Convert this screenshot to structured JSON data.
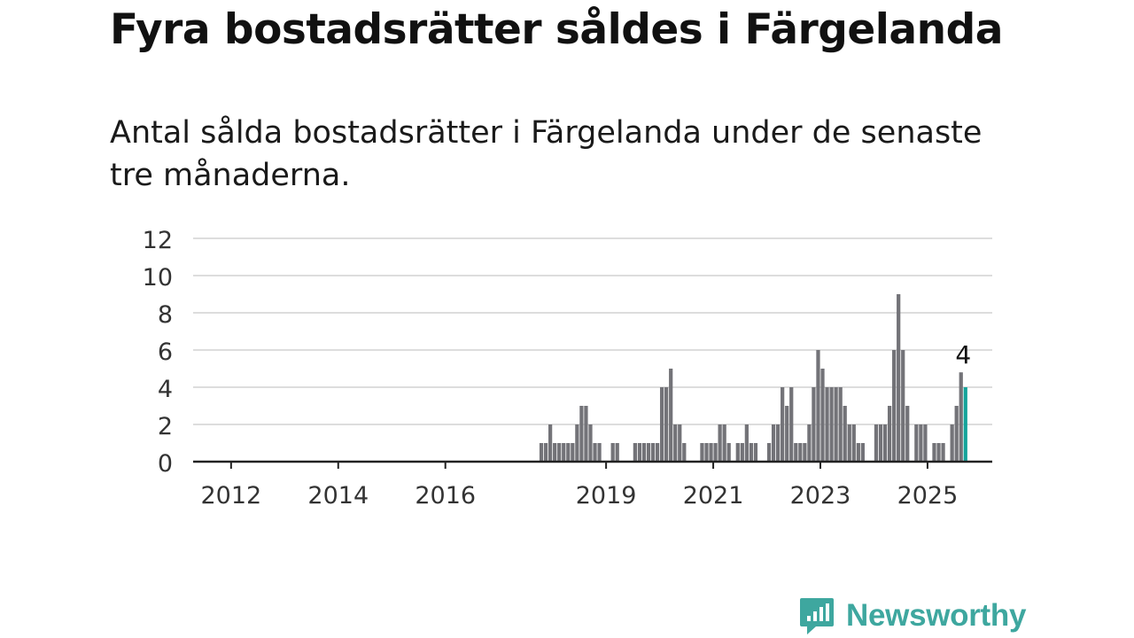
{
  "title": "Fyra bostadsrätter såldes i Färgelanda",
  "subtitle": "Antal sålda bostadsrätter i Färgelanda under de senaste tre månaderna.",
  "brand": {
    "name": "Newsworthy",
    "icon": "newsworthy-logo-icon",
    "color": "#3ea79f"
  },
  "chart_data": {
    "type": "bar",
    "ylim": [
      0,
      12
    ],
    "yticks": [
      0,
      2,
      4,
      6,
      8,
      10,
      12
    ],
    "xticks": [
      "2012",
      "2014",
      "2016",
      "2019",
      "2021",
      "2023",
      "2025"
    ],
    "grid": true,
    "colors": {
      "bar": "#737378",
      "highlight": "#14a39a",
      "grid": "#dddddd",
      "axis": "#222222"
    },
    "annotation": {
      "text": "4",
      "target": "last"
    },
    "bars": [
      {
        "x": "2017-10",
        "y": 1
      },
      {
        "x": "2017-11",
        "y": 1
      },
      {
        "x": "2017-12",
        "y": 2
      },
      {
        "x": "2018-01",
        "y": 1
      },
      {
        "x": "2018-02",
        "y": 1
      },
      {
        "x": "2018-03",
        "y": 1
      },
      {
        "x": "2018-04",
        "y": 1
      },
      {
        "x": "2018-05",
        "y": 1
      },
      {
        "x": "2018-06",
        "y": 2
      },
      {
        "x": "2018-07",
        "y": 3
      },
      {
        "x": "2018-08",
        "y": 3
      },
      {
        "x": "2018-09",
        "y": 2
      },
      {
        "x": "2018-10",
        "y": 1
      },
      {
        "x": "2018-11",
        "y": 1
      },
      {
        "x": "2019-02",
        "y": 1
      },
      {
        "x": "2019-03",
        "y": 1
      },
      {
        "x": "2019-07",
        "y": 1
      },
      {
        "x": "2019-08",
        "y": 1
      },
      {
        "x": "2019-09",
        "y": 1
      },
      {
        "x": "2019-10",
        "y": 1
      },
      {
        "x": "2019-11",
        "y": 1
      },
      {
        "x": "2019-12",
        "y": 1
      },
      {
        "x": "2020-01",
        "y": 4
      },
      {
        "x": "2020-02",
        "y": 4
      },
      {
        "x": "2020-03",
        "y": 5
      },
      {
        "x": "2020-04",
        "y": 2
      },
      {
        "x": "2020-05",
        "y": 2
      },
      {
        "x": "2020-06",
        "y": 1
      },
      {
        "x": "2020-10",
        "y": 1
      },
      {
        "x": "2020-11",
        "y": 1
      },
      {
        "x": "2020-12",
        "y": 1
      },
      {
        "x": "2021-01",
        "y": 1
      },
      {
        "x": "2021-02",
        "y": 2
      },
      {
        "x": "2021-03",
        "y": 2
      },
      {
        "x": "2021-04",
        "y": 1
      },
      {
        "x": "2021-06",
        "y": 1
      },
      {
        "x": "2021-07",
        "y": 1
      },
      {
        "x": "2021-08",
        "y": 2
      },
      {
        "x": "2021-09",
        "y": 1
      },
      {
        "x": "2021-10",
        "y": 1
      },
      {
        "x": "2022-01",
        "y": 1
      },
      {
        "x": "2022-02",
        "y": 2
      },
      {
        "x": "2022-03",
        "y": 2
      },
      {
        "x": "2022-04",
        "y": 4
      },
      {
        "x": "2022-05",
        "y": 3
      },
      {
        "x": "2022-06",
        "y": 4
      },
      {
        "x": "2022-07",
        "y": 1
      },
      {
        "x": "2022-08",
        "y": 1
      },
      {
        "x": "2022-09",
        "y": 1
      },
      {
        "x": "2022-10",
        "y": 2
      },
      {
        "x": "2022-11",
        "y": 4
      },
      {
        "x": "2022-12",
        "y": 6
      },
      {
        "x": "2023-01",
        "y": 5
      },
      {
        "x": "2023-02",
        "y": 4
      },
      {
        "x": "2023-03",
        "y": 4
      },
      {
        "x": "2023-04",
        "y": 4
      },
      {
        "x": "2023-05",
        "y": 4
      },
      {
        "x": "2023-06",
        "y": 3
      },
      {
        "x": "2023-07",
        "y": 2
      },
      {
        "x": "2023-08",
        "y": 2
      },
      {
        "x": "2023-09",
        "y": 1
      },
      {
        "x": "2023-10",
        "y": 1
      },
      {
        "x": "2024-01",
        "y": 2
      },
      {
        "x": "2024-02",
        "y": 2
      },
      {
        "x": "2024-03",
        "y": 2
      },
      {
        "x": "2024-04",
        "y": 3
      },
      {
        "x": "2024-05",
        "y": 6
      },
      {
        "x": "2024-06",
        "y": 9
      },
      {
        "x": "2024-07",
        "y": 6
      },
      {
        "x": "2024-08",
        "y": 3
      },
      {
        "x": "2024-10",
        "y": 2
      },
      {
        "x": "2024-11",
        "y": 2
      },
      {
        "x": "2024-12",
        "y": 2
      },
      {
        "x": "2025-02",
        "y": 1
      },
      {
        "x": "2025-03",
        "y": 1
      },
      {
        "x": "2025-04",
        "y": 1
      },
      {
        "x": "2025-06",
        "y": 2
      },
      {
        "x": "2025-07",
        "y": 3
      },
      {
        "x": "2025-08",
        "y": 4.8
      },
      {
        "x": "2025-09",
        "y": 4
      }
    ]
  }
}
